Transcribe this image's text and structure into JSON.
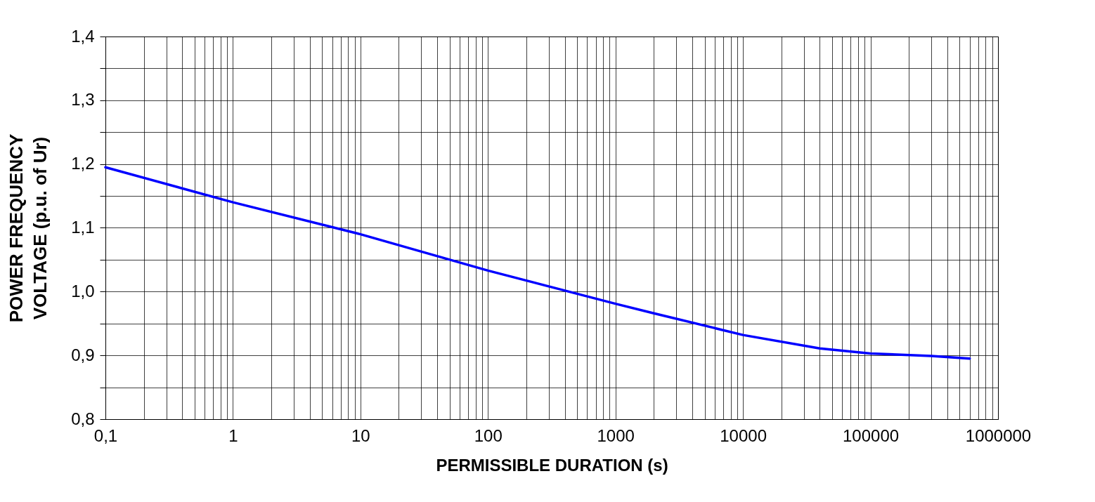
{
  "chart_data": {
    "type": "line",
    "xlabel": "PERMISSIBLE DURATION  (s)",
    "ylabel": "POWER FREQUENCY VOLTAGE (p.u. of Ur)",
    "x": [
      0.1,
      1,
      10,
      100,
      1000,
      2000,
      10000,
      40000,
      100000,
      300000,
      600000
    ],
    "series": [
      {
        "color": "#0000ff",
        "values": [
          1.195,
          1.14,
          1.09,
          1.033,
          0.981,
          0.966,
          0.932,
          0.911,
          0.903,
          0.899,
          0.895
        ]
      }
    ],
    "xlim": [
      0.1,
      1000000
    ],
    "ylim": [
      0.8,
      1.4
    ],
    "xticks": [
      {
        "value": 0.1,
        "label": "0,1"
      },
      {
        "value": 0.2,
        "label": null
      },
      {
        "value": 0.3,
        "label": null
      },
      {
        "value": 0.4,
        "label": null
      },
      {
        "value": 0.5,
        "label": null
      },
      {
        "value": 0.6,
        "label": null
      },
      {
        "value": 0.7,
        "label": null
      },
      {
        "value": 0.8,
        "label": null
      },
      {
        "value": 0.9,
        "label": null
      },
      1,
      {
        "value": 2,
        "label": null
      },
      {
        "value": 3,
        "label": null
      },
      {
        "value": 4,
        "label": null
      },
      {
        "value": 5,
        "label": null
      },
      {
        "value": 6,
        "label": null
      },
      {
        "value": 7,
        "label": null
      },
      {
        "value": 8,
        "label": null
      },
      {
        "value": 9,
        "label": null
      },
      10,
      {
        "value": 20,
        "label": null
      },
      {
        "value": 30,
        "label": null
      },
      {
        "value": 40,
        "label": null
      },
      {
        "value": 50,
        "label": null
      },
      {
        "value": 60,
        "label": null
      },
      {
        "value": 70,
        "label": null
      },
      {
        "value": 80,
        "label": null
      },
      {
        "value": 90,
        "label": null
      },
      100,
      {
        "value": 200,
        "label": null
      },
      {
        "value": 300,
        "label": null
      },
      {
        "value": 400,
        "label": null
      },
      {
        "value": 500,
        "label": null
      },
      {
        "value": 600,
        "label": null
      },
      {
        "value": 700,
        "label": null
      },
      {
        "value": 800,
        "label": null
      },
      {
        "value": 900,
        "label": null
      },
      1000,
      {
        "value": 2000,
        "label": null
      },
      {
        "value": 3000,
        "label": null
      },
      {
        "value": 4000,
        "label": null
      },
      {
        "value": 5000,
        "label": null
      },
      {
        "value": 6000,
        "label": null
      },
      {
        "value": 7000,
        "label": null
      },
      {
        "value": 8000,
        "label": null
      },
      {
        "value": 9000,
        "label": null
      },
      10000,
      {
        "value": 20000,
        "label": null
      },
      {
        "value": 30000,
        "label": null
      },
      {
        "value": 40000,
        "label": null
      },
      {
        "value": 50000,
        "label": null
      },
      {
        "value": 60000,
        "label": null
      },
      {
        "value": 70000,
        "label": null
      },
      {
        "value": 80000,
        "label": null
      },
      {
        "value": 90000,
        "label": null
      },
      100000,
      {
        "value": 200000,
        "label": null
      },
      {
        "value": 300000,
        "label": null
      },
      {
        "value": 400000,
        "label": null
      },
      {
        "value": 500000,
        "label": null
      },
      {
        "value": 600000,
        "label": null
      },
      {
        "value": 700000,
        "label": null
      },
      {
        "value": 800000,
        "label": null
      },
      {
        "value": 900000,
        "label": null
      },
      1000000
    ],
    "yticks": [
      {
        "value": 0.8,
        "label": "0,8"
      },
      {
        "value": 0.85,
        "label": null
      },
      {
        "value": 0.9,
        "label": "0,9"
      },
      {
        "value": 0.95,
        "label": null
      },
      {
        "value": 1.0,
        "label": "1,0"
      },
      {
        "value": 1.05,
        "label": null
      },
      {
        "value": 1.1,
        "label": "1,1"
      },
      {
        "value": 1.15,
        "label": null
      },
      {
        "value": 1.2,
        "label": "1,2"
      },
      {
        "value": 1.25,
        "label": null
      },
      {
        "value": 1.3,
        "label": "1,3"
      },
      {
        "value": 1.35,
        "label": null
      },
      {
        "value": 1.4,
        "label": "1,4"
      }
    ],
    "log": "x",
    "grid": true,
    "marker": "none",
    "line_style": "solid"
  }
}
